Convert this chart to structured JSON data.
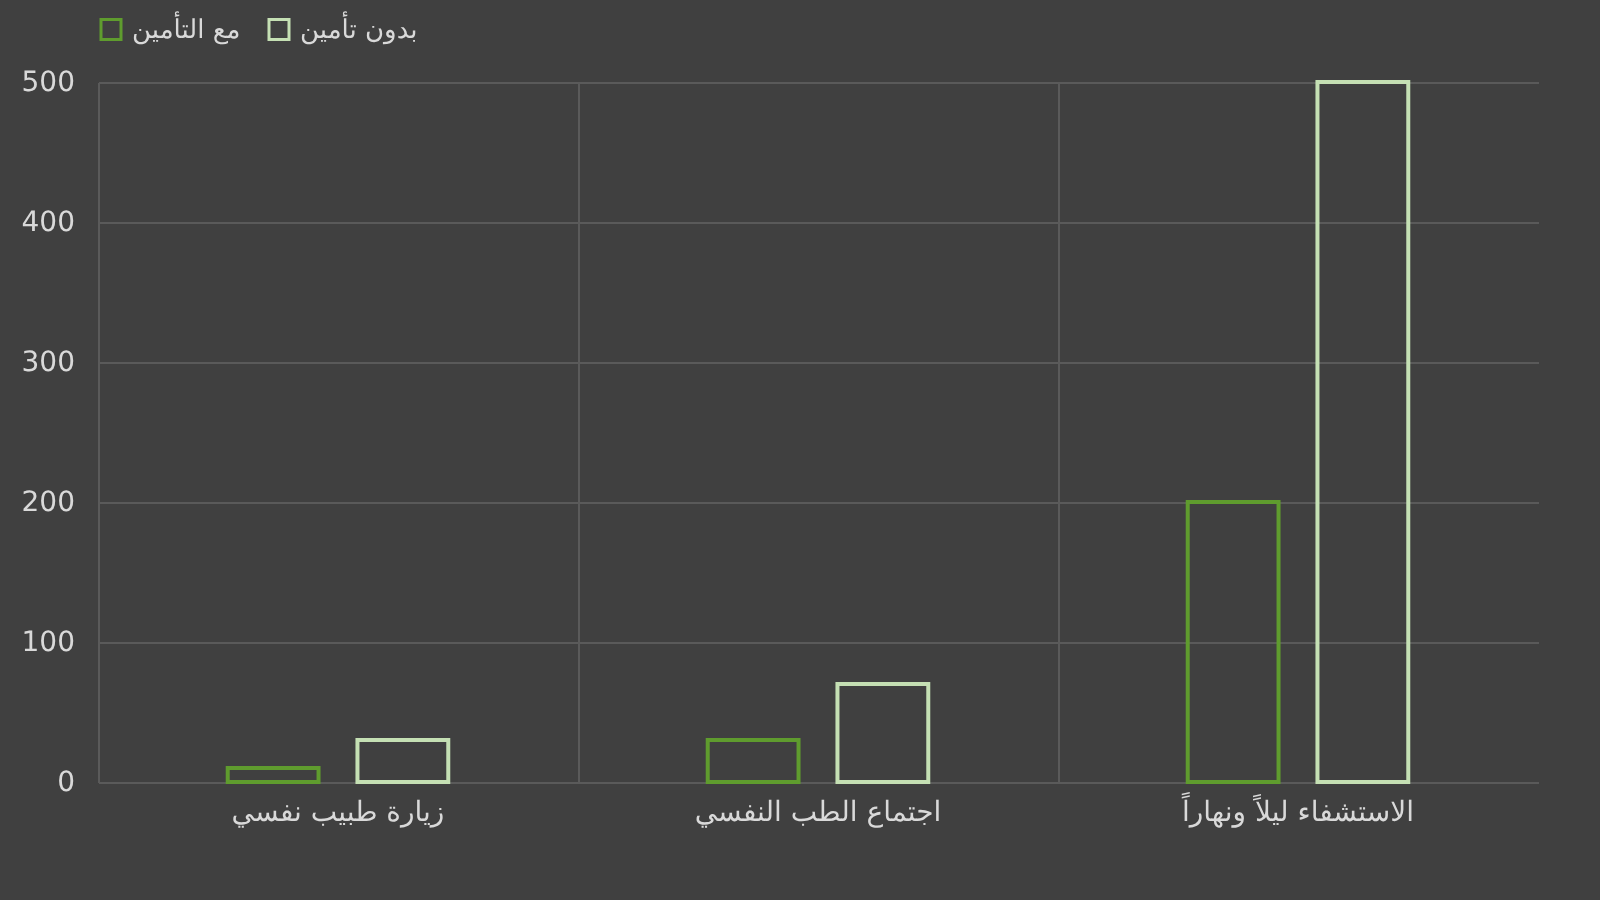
{
  "chart_data": {
    "type": "bar",
    "categories": [
      "زيارة طبيب نفسي",
      "اجتماع الطب النفسي",
      "الاستشفاء ليلاً ونهاراً"
    ],
    "series": [
      {
        "name": "مع التأمين",
        "color": "#5f9c2e",
        "values": [
          10,
          30,
          200
        ]
      },
      {
        "name": "بدون تأمين",
        "color": "#c5e0b4",
        "values": [
          30,
          70,
          500
        ]
      }
    ],
    "ylim": [
      0,
      500
    ],
    "yticks": [
      0,
      100,
      200,
      300,
      400,
      500
    ],
    "grid": true,
    "legend": "top"
  }
}
